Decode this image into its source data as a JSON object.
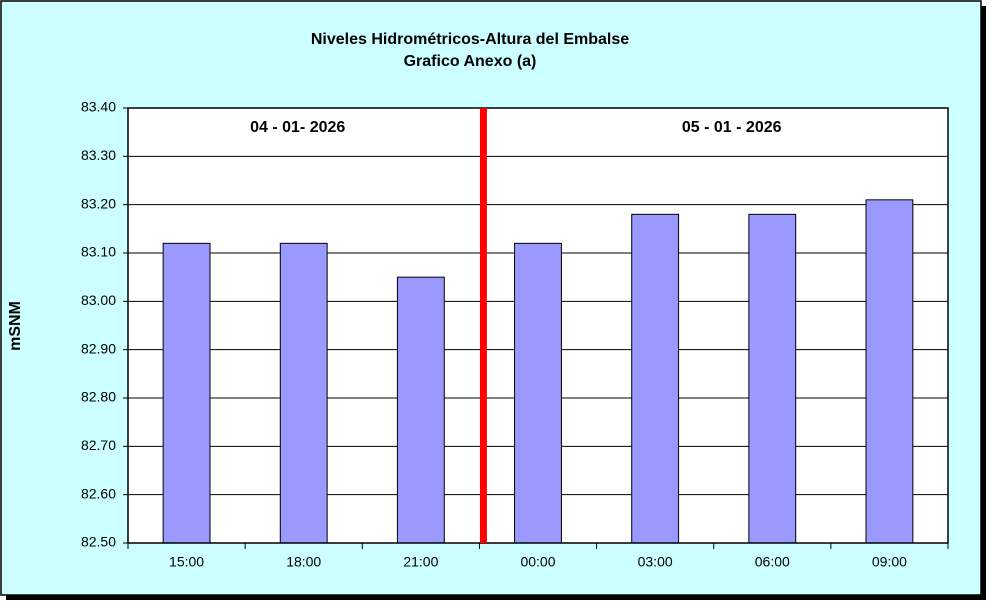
{
  "chart_data": {
    "type": "bar",
    "title": "Niveles Hidrométricos-Altura del Embalse",
    "subtitle": "Grafico Anexo (a)",
    "y_label": "mSNM",
    "annotations": [
      "04 - 01- 2026",
      "05 - 01 - 2026"
    ],
    "categories": [
      "15:00",
      "18:00",
      "21:00",
      "00:00",
      "03:00",
      "06:00",
      "09:00"
    ],
    "values": [
      83.12,
      83.12,
      83.05,
      83.12,
      83.18,
      83.18,
      83.21
    ],
    "color": "#9999ff",
    "ylim": [
      82.5,
      83.4
    ],
    "yticks": [
      {
        "value": 82.5,
        "label": "82.50"
      },
      {
        "value": 82.6,
        "label": "82.60"
      },
      {
        "value": 82.7,
        "label": "82.70"
      },
      {
        "value": 82.8,
        "label": "82.80"
      },
      {
        "value": 82.9,
        "label": "82.90"
      },
      {
        "value": 83.0,
        "label": "83.00"
      },
      {
        "value": 83.1,
        "label": "83.10"
      },
      {
        "value": 83.2,
        "label": "83.20"
      },
      {
        "value": 83.3,
        "label": "83.30"
      },
      {
        "value": 83.4,
        "label": "83.40"
      }
    ],
    "grid": true
  }
}
